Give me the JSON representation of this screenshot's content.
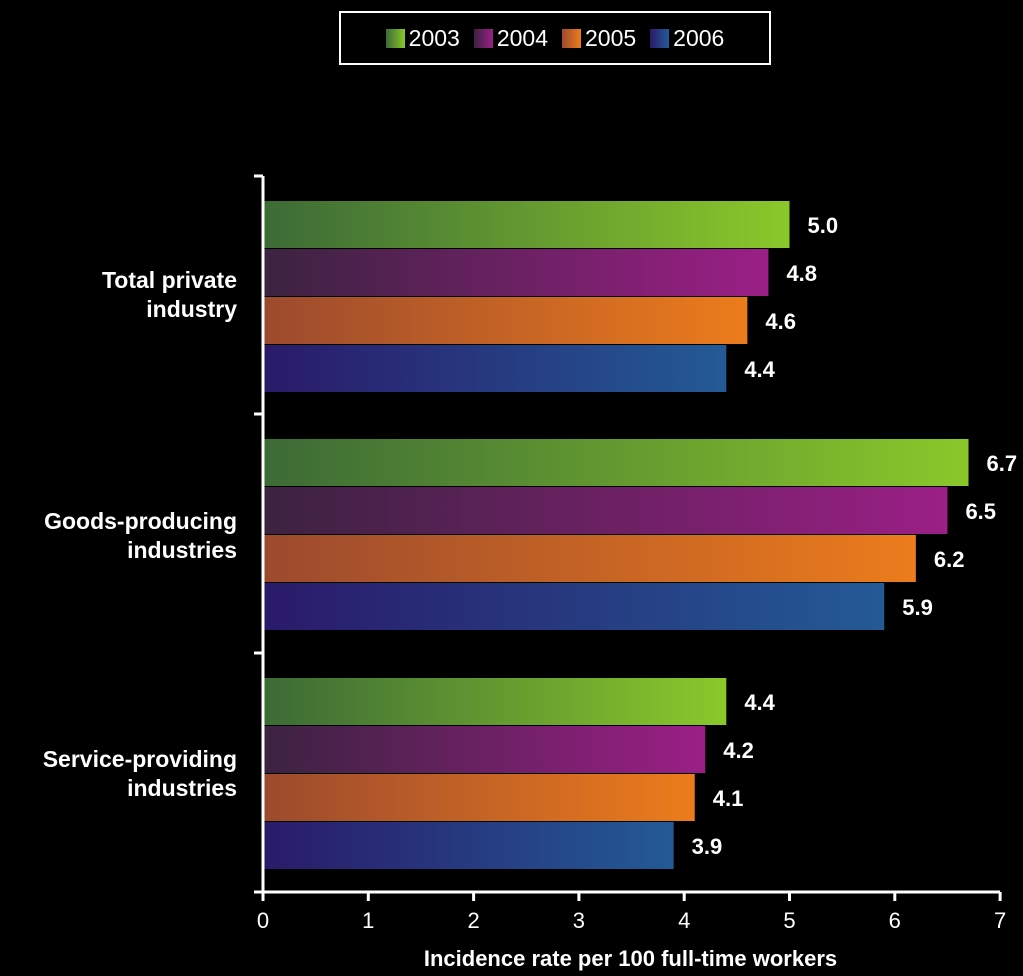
{
  "chart_data": {
    "type": "bar",
    "orientation": "horizontal",
    "categories": [
      "Total private\nindustry",
      "Goods-producing\nindustries",
      "Service-providing\nindustries"
    ],
    "series": [
      {
        "name": "2003",
        "values": [
          5.0,
          6.7,
          4.4
        ],
        "color": "#8ac82a"
      },
      {
        "name": "2004",
        "values": [
          4.8,
          6.5,
          4.2
        ],
        "color": "#9b1f86"
      },
      {
        "name": "2005",
        "values": [
          4.6,
          6.2,
          4.1
        ],
        "color": "#ec7c1c"
      },
      {
        "name": "2006",
        "values": [
          4.4,
          5.9,
          3.9
        ],
        "color": "#235a96"
      }
    ],
    "data_labels": [
      [
        "5.0",
        "6.7",
        "4.4"
      ],
      [
        "4.8",
        "6.5",
        "4.2"
      ],
      [
        "4.6",
        "6.2",
        "4.1"
      ],
      [
        "4.4",
        "5.9",
        "3.9"
      ]
    ],
    "xlabel": "Incidence rate per 100 full-time workers",
    "xlim": [
      0,
      7
    ],
    "xticks": [
      "0",
      "1",
      "2",
      "3",
      "4",
      "5",
      "6",
      "7"
    ],
    "grid": false,
    "legend_position": "top-center"
  }
}
